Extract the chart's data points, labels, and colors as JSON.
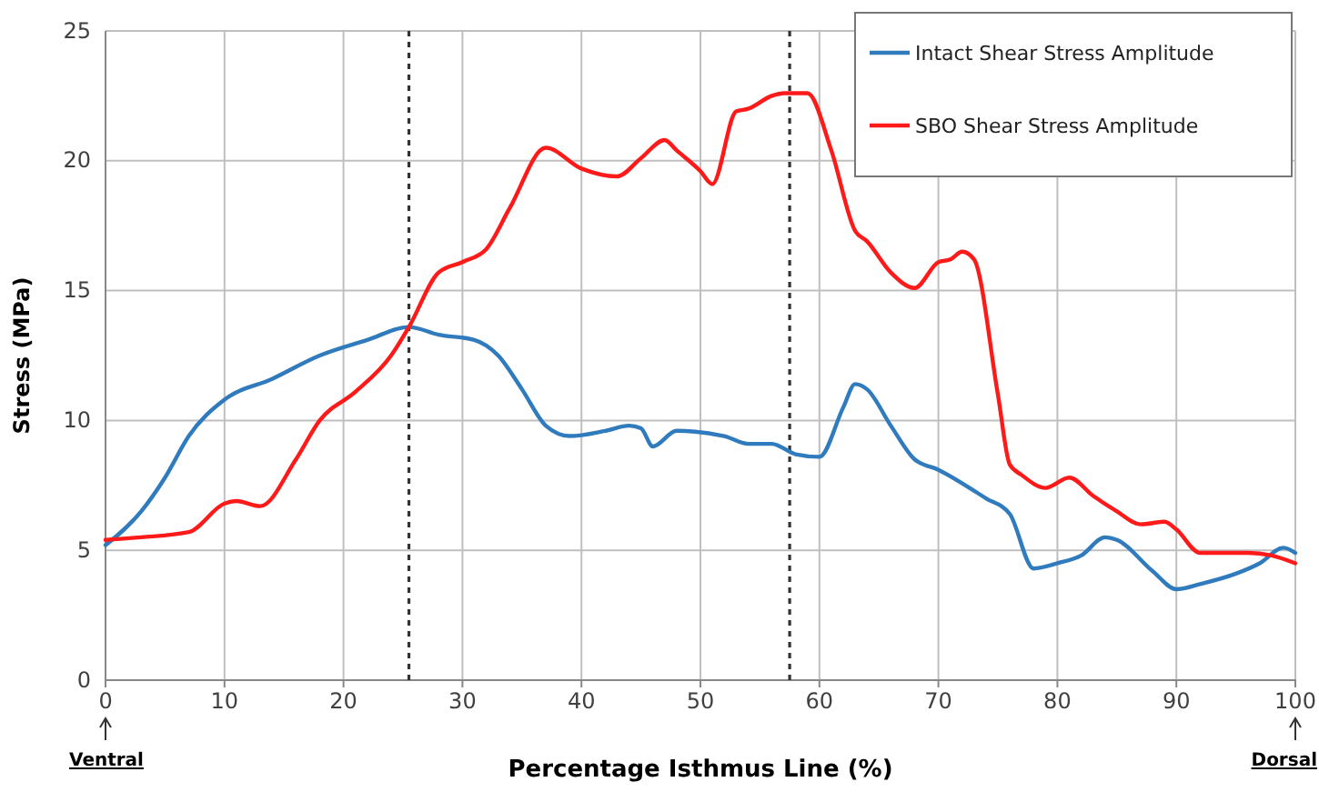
{
  "chart_data": {
    "type": "line",
    "xlabel": "Percentage Isthmus Line (%)",
    "ylabel": "Stress (MPa)",
    "xlim": [
      0,
      100
    ],
    "xticks": [
      0,
      10,
      20,
      30,
      40,
      50,
      60,
      70,
      80,
      90,
      100
    ],
    "ylim": [
      0,
      25
    ],
    "yticks": [
      0,
      5,
      10,
      15,
      20,
      25
    ],
    "grid": true,
    "legend": "top right",
    "marker": "none",
    "line_style": "solid",
    "series": [
      {
        "name": "Intact Shear Stress Amplitude",
        "color": "#2f7bbd",
        "x": [
          0,
          3,
          5,
          7,
          10,
          14,
          18,
          22,
          25.5,
          28,
          31,
          33,
          35,
          37,
          39,
          42,
          44,
          45,
          46,
          48,
          52,
          54,
          56,
          58,
          60,
          62,
          63,
          64,
          66,
          68,
          70,
          74,
          76,
          78,
          80,
          82,
          84,
          85,
          88,
          90,
          92,
          95,
          97,
          99,
          100
        ],
        "values": [
          5.2,
          6.5,
          7.8,
          9.4,
          10.8,
          11.6,
          12.5,
          13.1,
          13.6,
          13.3,
          13.1,
          12.5,
          11.2,
          9.8,
          9.4,
          9.6,
          9.8,
          9.7,
          9.0,
          9.6,
          9.4,
          9.1,
          9.1,
          8.7,
          8.6,
          10.5,
          11.4,
          11.2,
          9.8,
          8.5,
          8.1,
          7.0,
          6.4,
          4.3,
          4.5,
          4.8,
          5.5,
          5.4,
          4.2,
          3.5,
          3.7,
          4.1,
          4.5,
          5.1,
          4.9
        ]
      },
      {
        "name": "SBO Shear Stress Amplitude",
        "color": "#ff1a1a",
        "x": [
          0,
          3,
          7,
          10,
          11,
          13,
          16,
          18,
          21,
          24,
          25.5,
          28,
          30,
          32,
          34,
          37,
          40,
          43,
          45,
          47,
          48,
          50,
          51,
          53,
          54,
          56,
          57,
          58,
          59,
          61,
          63,
          64,
          66,
          68,
          70,
          71,
          72,
          73,
          75,
          76,
          77,
          79,
          81,
          83,
          85,
          87,
          89,
          90,
          92,
          94,
          96,
          98,
          100
        ],
        "values": [
          5.4,
          5.5,
          5.7,
          6.8,
          6.9,
          6.7,
          8.5,
          10,
          11.1,
          12.5,
          13.6,
          15.7,
          16.1,
          16.6,
          18.2,
          20.5,
          19.7,
          19.4,
          20.1,
          20.8,
          20.4,
          19.6,
          19.1,
          21.9,
          22,
          22.5,
          22.6,
          22.6,
          22.6,
          20.4,
          17.3,
          16.9,
          15.7,
          15.1,
          16.1,
          16.2,
          16.5,
          16.2,
          11,
          8.3,
          7.9,
          7.4,
          7.8,
          7.1,
          6.5,
          6.0,
          6.1,
          5.8,
          4.9,
          4.9,
          4.9,
          4.8,
          4.5
        ]
      }
    ],
    "ref_lines": [
      {
        "axis": "x",
        "value": 25.5,
        "color": "#333333",
        "line_style": "dotted"
      },
      {
        "axis": "x",
        "value": 57.5,
        "color": "#333333",
        "line_style": "dotted"
      }
    ],
    "annotations": [
      "Ventral",
      "Dorsal"
    ]
  }
}
